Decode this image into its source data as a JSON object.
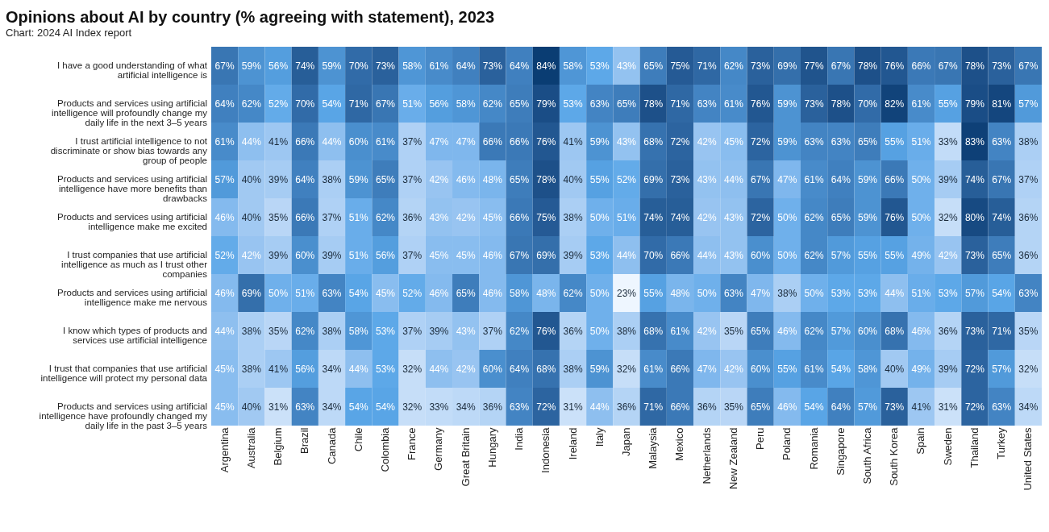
{
  "chart_data": {
    "type": "heatmap",
    "title": "Opinions about AI by country (% agreeing with statement), 2023",
    "subtitle": "Chart: 2024 AI Index report",
    "categories": [
      "Argentina",
      "Australia",
      "Belgium",
      "Brazil",
      "Canada",
      "Chile",
      "Colombia",
      "France",
      "Germany",
      "Great Britain",
      "Hungary",
      "India",
      "Indonesia",
      "Ireland",
      "Italy",
      "Japan",
      "Malaysia",
      "Mexico",
      "Netherlands",
      "New Zealand",
      "Peru",
      "Poland",
      "Romania",
      "Singapore",
      "South Africa",
      "South Korea",
      "Spain",
      "Sweden",
      "Thailand",
      "Turkey",
      "United States"
    ],
    "y_categories": [
      "I have a good understanding of what artificial intelligence is",
      "Products and services using artificial intelligence will profoundly change my daily life in the next 3–5 years",
      "I trust artificial intelligence to not discriminate or show bias towards any group of people",
      "Products and services using artificial intelligence have more benefits than drawbacks",
      "Products and services using artificial intelligence make me excited",
      "I trust companies that use artificial intelligence as much as I trust other companies",
      "Products and services using artificial intelligence make me nervous",
      "I know which types of products and services use artificial intelligence",
      "I trust that companies that use artificial intelligence will protect my personal data",
      "Products and services using artificial intelligence have profoundly changed my daily life in the past 3–5 years"
    ],
    "cells": [
      [
        67,
        59,
        56,
        74,
        59,
        70,
        73,
        58,
        61,
        64,
        73,
        64,
        84,
        58,
        53,
        43,
        65,
        75,
        71,
        62,
        73,
        69,
        77,
        67,
        78,
        76,
        66,
        67,
        78,
        73,
        67
      ],
      [
        64,
        62,
        52,
        70,
        54,
        71,
        67,
        51,
        56,
        58,
        62,
        65,
        79,
        53,
        63,
        65,
        78,
        71,
        63,
        61,
        76,
        59,
        73,
        78,
        70,
        82,
        61,
        55,
        79,
        81,
        57
      ],
      [
        61,
        44,
        41,
        66,
        44,
        60,
        61,
        37,
        47,
        47,
        66,
        66,
        76,
        41,
        59,
        43,
        68,
        72,
        42,
        45,
        72,
        59,
        63,
        63,
        65,
        55,
        51,
        33,
        83,
        63,
        38
      ],
      [
        57,
        40,
        39,
        64,
        38,
        59,
        65,
        37,
        42,
        46,
        48,
        65,
        78,
        40,
        55,
        52,
        69,
        73,
        43,
        44,
        67,
        47,
        61,
        64,
        59,
        66,
        50,
        39,
        74,
        67,
        37
      ],
      [
        46,
        40,
        35,
        66,
        37,
        51,
        62,
        36,
        43,
        42,
        45,
        66,
        75,
        38,
        50,
        51,
        74,
        74,
        42,
        43,
        72,
        50,
        62,
        65,
        59,
        76,
        50,
        32,
        80,
        74,
        36
      ],
      [
        52,
        42,
        39,
        60,
        39,
        51,
        56,
        37,
        45,
        45,
        46,
        67,
        69,
        39,
        53,
        44,
        70,
        66,
        44,
        43,
        60,
        50,
        62,
        57,
        55,
        55,
        49,
        42,
        73,
        65,
        36
      ],
      [
        46,
        69,
        50,
        51,
        63,
        54,
        45,
        52,
        46,
        65,
        46,
        58,
        48,
        62,
        50,
        23,
        55,
        48,
        50,
        63,
        47,
        38,
        50,
        53,
        53,
        44,
        51,
        53,
        57,
        54,
        63
      ],
      [
        44,
        38,
        35,
        62,
        38,
        58,
        53,
        37,
        39,
        43,
        37,
        62,
        76,
        36,
        50,
        38,
        68,
        61,
        42,
        35,
        65,
        46,
        62,
        57,
        60,
        68,
        46,
        36,
        73,
        71,
        35
      ],
      [
        45,
        38,
        41,
        56,
        34,
        44,
        53,
        32,
        44,
        42,
        60,
        64,
        68,
        38,
        59,
        32,
        61,
        66,
        47,
        42,
        60,
        55,
        61,
        54,
        58,
        40,
        49,
        39,
        72,
        57,
        32
      ],
      [
        45,
        40,
        31,
        63,
        34,
        54,
        54,
        32,
        33,
        34,
        36,
        63,
        72,
        31,
        44,
        36,
        71,
        66,
        36,
        35,
        65,
        46,
        54,
        64,
        57,
        73,
        41,
        31,
        72,
        63,
        34
      ]
    ],
    "cell_labels": [
      [
        "67%",
        "59%",
        "56%",
        "74%",
        "59%",
        "70%",
        "73%",
        "58%",
        "61%",
        "64%",
        "73%",
        "64%",
        "84%",
        "58%",
        "53%",
        "43%",
        "65%",
        "75%",
        "71%",
        "62%",
        "73%",
        "69%",
        "77%",
        "67%",
        "78%",
        "76%",
        "66%",
        "67%",
        "78%",
        "73%",
        "67%"
      ],
      [
        "64%",
        "62%",
        "52%",
        "70%",
        "54%",
        "71%",
        "67%",
        "51%",
        "56%",
        "58%",
        "62%",
        "65%",
        "79%",
        "53%",
        "63%",
        "65%",
        "78%",
        "71%",
        "63%",
        "61%",
        "76%",
        "59%",
        "73%",
        "78%",
        "70%",
        "82%",
        "61%",
        "55%",
        "79%",
        "81%",
        "57%"
      ],
      [
        "61%",
        "44%",
        "41%",
        "66%",
        "44%",
        "60%",
        "61%",
        "37%",
        "47%",
        "47%",
        "66%",
        "66%",
        "76%",
        "41%",
        "59%",
        "43%",
        "68%",
        "72%",
        "42%",
        "45%",
        "72%",
        "59%",
        "63%",
        "63%",
        "65%",
        "55%",
        "51%",
        "33%",
        "83%",
        "63%",
        "38%"
      ],
      [
        "57%",
        "40%",
        "39%",
        "64%",
        "38%",
        "59%",
        "65%",
        "37%",
        "42%",
        "46%",
        "48%",
        "65%",
        "78%",
        "40%",
        "55%",
        "52%",
        "69%",
        "73%",
        "43%",
        "44%",
        "67%",
        "47%",
        "61%",
        "64%",
        "59%",
        "66%",
        "50%",
        "39%",
        "74%",
        "67%",
        "37%"
      ],
      [
        "46%",
        "40%",
        "35%",
        "66%",
        "37%",
        "51%",
        "62%",
        "36%",
        "43%",
        "42%",
        "45%",
        "66%",
        "75%",
        "38%",
        "50%",
        "51%",
        "74%",
        "74%",
        "42%",
        "43%",
        "72%",
        "50%",
        "62%",
        "65%",
        "59%",
        "76%",
        "50%",
        "32%",
        "80%",
        "74%",
        "36%"
      ],
      [
        "52%",
        "42%",
        "39%",
        "60%",
        "39%",
        "51%",
        "56%",
        "37%",
        "45%",
        "45%",
        "46%",
        "67%",
        "69%",
        "39%",
        "53%",
        "44%",
        "70%",
        "66%",
        "44%",
        "43%",
        "60%",
        "50%",
        "62%",
        "57%",
        "55%",
        "55%",
        "49%",
        "42%",
        "73%",
        "65%",
        "36%"
      ],
      [
        "46%",
        "69%",
        "50%",
        "51%",
        "63%",
        "54%",
        "45%",
        "52%",
        "46%",
        "65%",
        "46%",
        "58%",
        "48%",
        "62%",
        "50%",
        "23%",
        "55%",
        "48%",
        "50%",
        "63%",
        "47%",
        "38%",
        "50%",
        "53%",
        "53%",
        "44%",
        "51%",
        "53%",
        "57%",
        "54%",
        "63%"
      ],
      [
        "44%",
        "38%",
        "35%",
        "62%",
        "38%",
        "58%",
        "53%",
        "37%",
        "39%",
        "43%",
        "37%",
        "62%",
        "76%",
        "36%",
        "50%",
        "38%",
        "68%",
        "61%",
        "42%",
        "35%",
        "65%",
        "46%",
        "62%",
        "57%",
        "60%",
        "68%",
        "46%",
        "36%",
        "73%",
        "71%",
        "35%"
      ],
      [
        "45%",
        "38%",
        "41%",
        "56%",
        "34%",
        "44%",
        "53%",
        "32%",
        "44%",
        "42%",
        "60%",
        "64%",
        "68%",
        "38%",
        "59%",
        "32%",
        "61%",
        "66%",
        "47%",
        "42%",
        "60%",
        "55%",
        "61%",
        "54%",
        "58%",
        "40%",
        "49%",
        "39%",
        "72%",
        "57%",
        "32%"
      ],
      [
        "45%",
        "40%",
        "31%",
        "63%",
        "34%",
        "54%",
        "54%",
        "32%",
        "33%",
        "34%",
        "36%",
        "63%",
        "72%",
        "31%",
        "44%",
        "36%",
        "71%",
        "66%",
        "36%",
        "35%",
        "65%",
        "46%",
        "54%",
        "64%",
        "57%",
        "73%",
        "41%",
        "31%",
        "72%",
        "63%",
        "34%"
      ]
    ]
  }
}
